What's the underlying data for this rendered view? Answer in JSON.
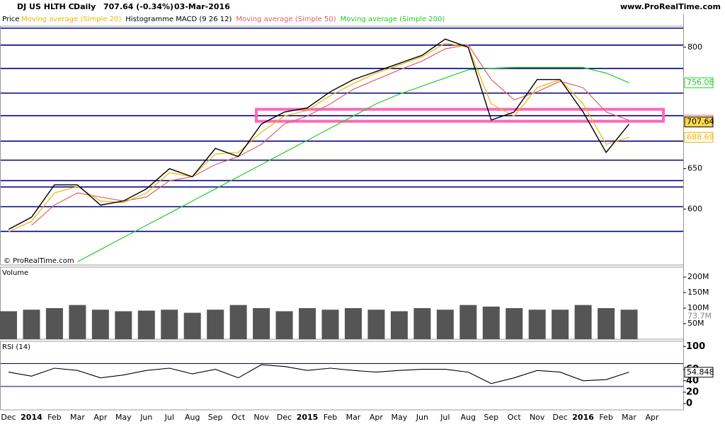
{
  "header": {
    "symbol": "DJ US HLTH C",
    "period": "Daily",
    "last": "707.64 (-0.34%)",
    "date": "03-Mar-2016",
    "site": "www.ProRealTime.com",
    "watermark": "© ProRealTime.com"
  },
  "chart_data": [
    {
      "type": "line",
      "panel_label": "Price",
      "extra_legend": "Histogramme MACD (9 26 12)",
      "categories": [
        "Dec",
        "2014",
        "Feb",
        "Mar",
        "Apr",
        "May",
        "Jun",
        "Jul",
        "Aug",
        "Sep",
        "Oct",
        "Nov",
        "Dec",
        "2015",
        "Feb",
        "Mar",
        "Apr",
        "May",
        "Jun",
        "Jul",
        "Aug",
        "Sep",
        "Oct",
        "Nov",
        "Dec",
        "2016",
        "Feb",
        "Mar",
        "Apr"
      ],
      "series": [
        {
          "name": "Price",
          "color": "#000000",
          "values": [
            575,
            590,
            630,
            630,
            605,
            610,
            625,
            650,
            640,
            675,
            665,
            705,
            720,
            725,
            745,
            760,
            770,
            780,
            790,
            810,
            800,
            710,
            720,
            760,
            760,
            720,
            670,
            705,
            null
          ],
          "last": 707.64
        },
        {
          "name": "Moving average (Simple 20)",
          "color": "#f0b400",
          "values": [
            572,
            585,
            620,
            628,
            610,
            608,
            620,
            645,
            640,
            668,
            670,
            695,
            715,
            722,
            740,
            755,
            768,
            778,
            788,
            805,
            800,
            730,
            715,
            750,
            760,
            730,
            680,
            688.69,
            null
          ],
          "last": 688.69
        },
        {
          "name": "Moving average (Simple 50)",
          "color": "#e06060",
          "values": [
            null,
            580,
            605,
            620,
            615,
            610,
            615,
            635,
            640,
            655,
            665,
            680,
            705,
            715,
            730,
            748,
            760,
            772,
            783,
            798,
            803,
            760,
            735,
            745,
            758,
            750,
            720,
            709.78,
            null
          ],
          "last": 709.78
        },
        {
          "name": "Moving average (Simple 200)",
          "color": "#22cc22",
          "values": [
            null,
            null,
            null,
            535,
            550,
            565,
            580,
            595,
            610,
            625,
            640,
            655,
            670,
            685,
            700,
            715,
            730,
            742,
            752,
            762,
            772,
            774,
            775,
            775,
            775,
            775,
            768,
            756.08,
            null
          ],
          "last": 756.08
        }
      ],
      "levels": [
        823.5,
        802.6,
        773.8,
        743.3,
        715.4,
        684,
        660.5,
        635.2,
        627.4,
        603,
        572.5
      ],
      "zone": [
        708.5,
        723.3
      ],
      "ylim": [
        531,
        826
      ],
      "yticks": [
        600,
        650,
        800
      ]
    },
    {
      "type": "bar",
      "panel_label": "Volume",
      "color": "#000000",
      "values": [
        90,
        95,
        100,
        110,
        95,
        90,
        92,
        95,
        85,
        95,
        110,
        100,
        90,
        100,
        95,
        100,
        95,
        90,
        100,
        95,
        110,
        105,
        100,
        95,
        95,
        110,
        100,
        95,
        null
      ],
      "last": {
        "value": 73.7,
        "label": "73.7M"
      },
      "ylim": [
        0,
        232
      ],
      "yticks": [
        {
          "value": 50,
          "label": "50M"
        },
        {
          "value": 100,
          "label": "100M"
        },
        {
          "value": 150,
          "label": "150M"
        },
        {
          "value": 200,
          "label": "200M"
        }
      ]
    },
    {
      "type": "line",
      "panel_label": "RSI (14)",
      "color": "#000000",
      "values": [
        55,
        48,
        62,
        58,
        45,
        50,
        58,
        62,
        52,
        60,
        45,
        68,
        65,
        58,
        62,
        58,
        55,
        58,
        60,
        60,
        55,
        35,
        45,
        58,
        55,
        40,
        42,
        55,
        null
      ],
      "last": 54.848,
      "bands": [
        70,
        30
      ],
      "ylim": [
        -11,
        109
      ],
      "yticks": [
        0,
        20,
        40,
        60,
        100
      ]
    }
  ]
}
